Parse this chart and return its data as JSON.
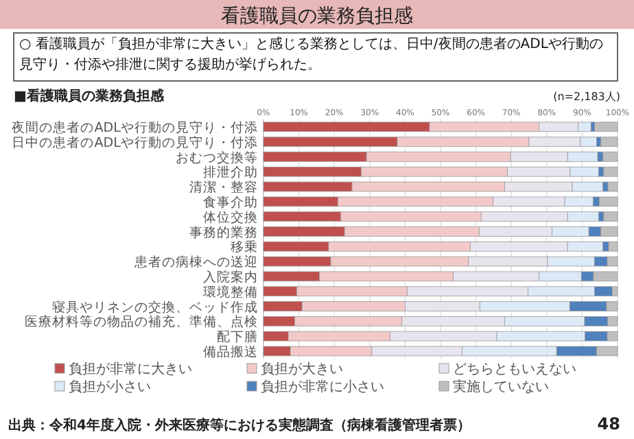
{
  "chart_data": {
    "type": "bar",
    "orientation": "horizontal",
    "stacked": true,
    "title": "看護職員の業務負担感",
    "subtitle": "○ 看護職員が「負担が非常に大きい」と感じる業務としては、日中/夜間の患者のADLや行動の見守り・付添や排泄に関する援助が挙げられた。",
    "annotations": [
      "■看護職員の業務負担感",
      "(n=2,183人)",
      "出典：令和4年度入院・外来医療等における実態調査（病棟看護管理者票）",
      "48"
    ],
    "categories": [
      "夜間の患者のADLや行動の見守り・付添",
      "日中の患者のADLや行動の見守り・付添",
      "おむつ交換等",
      "排泄介助",
      "清潔・整容",
      "食事介助",
      "体位交換",
      "事務的業務",
      "移乗",
      "患者の病棟への送迎",
      "入院案内",
      "環境整備",
      "寝具やリネンの交換、ベッド作成",
      "医療材料等の物品の補充、準備、点検",
      "配下膳",
      "備品搬送"
    ],
    "series": [
      {
        "name": "負担が非常に大きい",
        "color": "#c0504d",
        "values": [
          46.9,
          37.8,
          29.1,
          27.6,
          25.0,
          21.0,
          21.8,
          22.9,
          18.4,
          19.0,
          15.8,
          9.4,
          10.9,
          8.8,
          7.0,
          7.6
        ]
      },
      {
        "name": "負担が大きい",
        "color": "#f2c9c8",
        "values": [
          30.9,
          37.2,
          40.7,
          41.3,
          43.1,
          43.8,
          39.7,
          38.0,
          40.0,
          38.9,
          37.8,
          31.2,
          29.1,
          30.3,
          28.8,
          23.0
        ]
      },
      {
        "name": "どちらともいえない",
        "color": "#e8e4ee",
        "values": [
          11.1,
          14.5,
          16.1,
          17.7,
          19.1,
          20.3,
          24.4,
          20.6,
          27.5,
          22.3,
          24.2,
          34.1,
          21.1,
          29.0,
          30.1,
          25.5
        ]
      },
      {
        "name": "負担が小さい",
        "color": "#dce9f7",
        "values": [
          3.6,
          4.6,
          8.5,
          8.1,
          8.7,
          8.0,
          8.8,
          10.4,
          10.0,
          13.3,
          12.0,
          18.8,
          25.4,
          22.6,
          24.9,
          26.7
        ]
      },
      {
        "name": "負担が非常に小さい",
        "color": "#4f81bd",
        "values": [
          1.0,
          1.2,
          1.5,
          1.4,
          1.4,
          1.8,
          1.4,
          3.4,
          1.6,
          3.6,
          3.4,
          5.0,
          10.4,
          6.5,
          6.3,
          11.3
        ]
      },
      {
        "name": "実施していない",
        "color": "#bfbfbf",
        "values": [
          6.5,
          4.7,
          4.1,
          3.9,
          2.7,
          5.1,
          3.9,
          4.7,
          2.5,
          2.9,
          6.8,
          1.5,
          3.1,
          2.8,
          2.9,
          5.9
        ]
      }
    ],
    "xlim": [
      0,
      100
    ],
    "xticks": [
      {
        "value": 0,
        "label": "0%"
      },
      {
        "value": 10,
        "label": "10%"
      },
      {
        "value": 20,
        "label": "20%"
      },
      {
        "value": 30,
        "label": "30%"
      },
      {
        "value": 40,
        "label": "40%"
      },
      {
        "value": 50,
        "label": "50%"
      },
      {
        "value": 60,
        "label": "60%"
      },
      {
        "value": 70,
        "label": "70%"
      },
      {
        "value": 80,
        "label": "80%"
      },
      {
        "value": 90,
        "label": "90%"
      },
      {
        "value": 100,
        "label": "100%"
      }
    ],
    "grid": "x",
    "legend": "bottom"
  }
}
